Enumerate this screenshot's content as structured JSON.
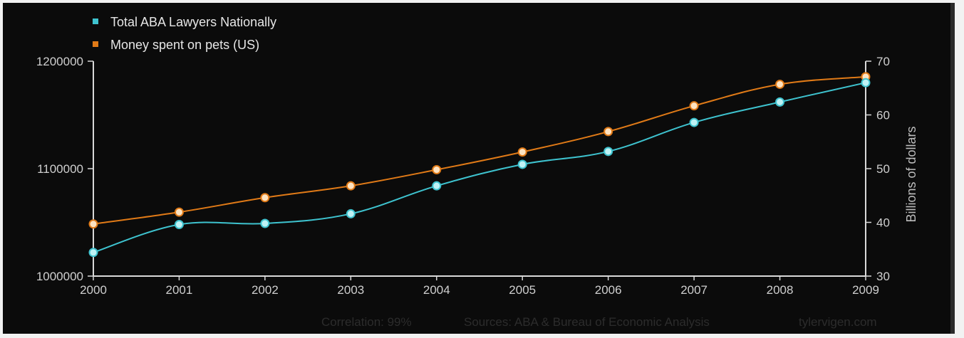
{
  "chart_data": {
    "type": "line",
    "x": [
      2000,
      2001,
      2002,
      2003,
      2004,
      2005,
      2006,
      2007,
      2008,
      2009
    ],
    "x_tick_labels": [
      "2000",
      "2001",
      "2002",
      "2003",
      "2004",
      "2005",
      "2006",
      "2007",
      "2008",
      "2009"
    ],
    "y_left": {
      "ylim": [
        1000000,
        1200000
      ],
      "ticks": [
        1000000,
        1100000,
        1200000
      ],
      "tick_labels": [
        "1000000",
        "1100000",
        "1200000"
      ]
    },
    "y_right": {
      "label": "Billions of dollars",
      "ylim": [
        30,
        70
      ],
      "ticks": [
        30,
        40,
        50,
        60,
        70
      ],
      "tick_labels": [
        "30",
        "40",
        "50",
        "60",
        "70"
      ]
    },
    "series": [
      {
        "name": "Total ABA Lawyers Nationally",
        "axis": "left",
        "color": "#3ec3cf",
        "values": [
          1022000,
          1048000,
          1049000,
          1058000,
          1084000,
          1104000,
          1116000,
          1143000,
          1162000,
          1180000
        ]
      },
      {
        "name": "Money spent on pets (US)",
        "axis": "right",
        "color": "#e07a17",
        "values": [
          39.7,
          41.9,
          44.6,
          46.8,
          49.8,
          53.1,
          56.9,
          61.7,
          65.7,
          67.1
        ]
      }
    ],
    "grid": false,
    "legend_position": "top-left",
    "footer": {
      "correlation": "Correlation: 99%",
      "sources": "Sources: ABA & Bureau of Economic Analysis",
      "site": "tylervigen.com"
    }
  }
}
